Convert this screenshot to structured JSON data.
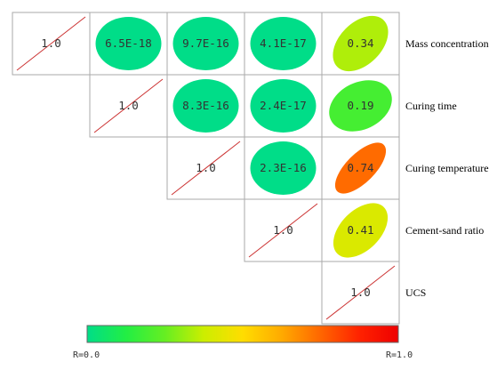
{
  "chart_data": {
    "type": "heatmap",
    "variables": [
      "Mass concentration",
      "Curing time",
      "Curing temperature",
      "Cement-sand ratio",
      "UCS"
    ],
    "cells": [
      {
        "row": 0,
        "col": 0,
        "label": "1.0",
        "value": 1.0
      },
      {
        "row": 0,
        "col": 1,
        "label": "6.5E-18",
        "value": 6.5e-18
      },
      {
        "row": 0,
        "col": 2,
        "label": "9.7E-16",
        "value": 9.7e-16
      },
      {
        "row": 0,
        "col": 3,
        "label": "4.1E-17",
        "value": 4.1e-17
      },
      {
        "row": 0,
        "col": 4,
        "label": "0.34",
        "value": 0.34
      },
      {
        "row": 1,
        "col": 1,
        "label": "1.0",
        "value": 1.0
      },
      {
        "row": 1,
        "col": 2,
        "label": "8.3E-16",
        "value": 8.3e-16
      },
      {
        "row": 1,
        "col": 3,
        "label": "2.4E-17",
        "value": 2.4e-17
      },
      {
        "row": 1,
        "col": 4,
        "label": "0.19",
        "value": 0.19
      },
      {
        "row": 2,
        "col": 2,
        "label": "1.0",
        "value": 1.0
      },
      {
        "row": 2,
        "col": 3,
        "label": "2.3E-16",
        "value": 2.3e-16
      },
      {
        "row": 2,
        "col": 4,
        "label": "0.74",
        "value": 0.74
      },
      {
        "row": 3,
        "col": 3,
        "label": "1.0",
        "value": 1.0
      },
      {
        "row": 3,
        "col": 4,
        "label": "0.41",
        "value": 0.41
      },
      {
        "row": 4,
        "col": 4,
        "label": "1.0",
        "value": 1.0
      }
    ],
    "colorbar": {
      "min_label": "R=0.0",
      "max_label": "R=1.0",
      "range": [
        0,
        1
      ],
      "colors": [
        "#00dd88",
        "#22ee44",
        "#66ee22",
        "#ccee00",
        "#ffdd00",
        "#ffaa00",
        "#ff6600",
        "#ff2200",
        "#ee0000"
      ]
    },
    "diagonal_line_color": "#cc3333",
    "grid": true
  }
}
